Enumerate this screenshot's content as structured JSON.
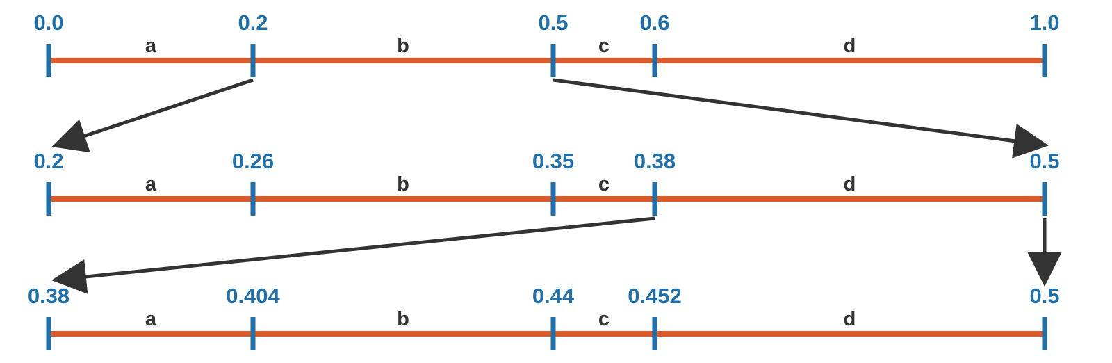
{
  "colors": {
    "line": "#DB5A2A",
    "tick": "#1F6FAA",
    "tick_label": "#1F6FAA",
    "segment_label": "#333333",
    "arrow": "#333333"
  },
  "intervals": [
    {
      "ticks": [
        "0.0",
        "0.2",
        "0.5",
        "0.6",
        "1.0"
      ],
      "segments": [
        "a",
        "b",
        "c",
        "d"
      ]
    },
    {
      "ticks": [
        "0.2",
        "0.26",
        "0.35",
        "0.38",
        "0.5"
      ],
      "segments": [
        "a",
        "b",
        "c",
        "d"
      ]
    },
    {
      "ticks": [
        "0.38",
        "0.404",
        "0.44",
        "0.452",
        "0.5"
      ],
      "segments": [
        "a",
        "b",
        "c",
        "d"
      ]
    }
  ],
  "arrows": [
    {
      "from_row": 0,
      "from_tick": 1,
      "to_row": 1,
      "to_tick": 0
    },
    {
      "from_row": 0,
      "from_tick": 2,
      "to_row": 1,
      "to_tick": 4
    },
    {
      "from_row": 1,
      "from_tick": 3,
      "to_row": 2,
      "to_tick": 0
    },
    {
      "from_row": 1,
      "from_tick": 4,
      "to_row": 2,
      "to_tick": 4
    }
  ]
}
